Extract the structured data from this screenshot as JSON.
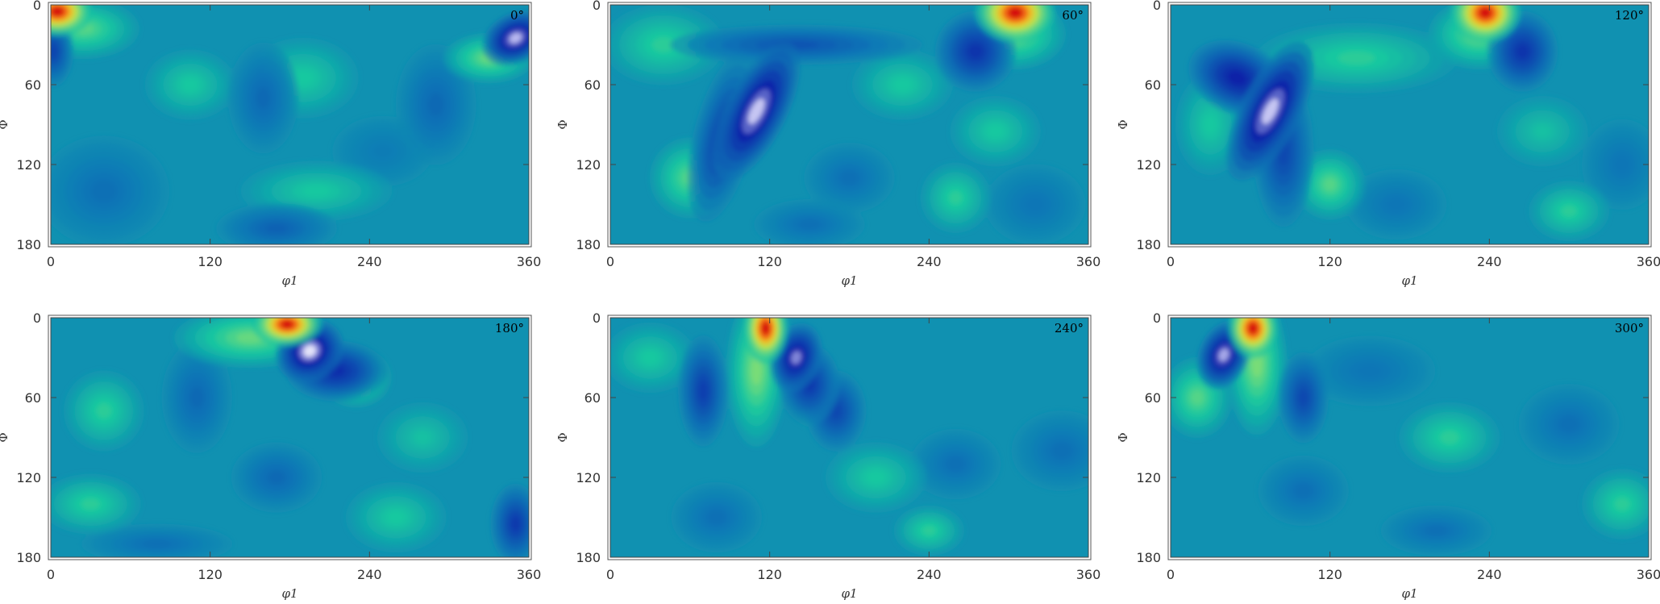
{
  "chart_data": [
    {
      "type": "heatmap",
      "panel_label": "0°",
      "xlabel": "φ1",
      "ylabel": "Φ",
      "xlim": [
        0,
        360
      ],
      "ylim": [
        0,
        180
      ],
      "y_inverted": true,
      "xticks": [
        "0",
        "120",
        "240",
        "360"
      ],
      "yticks": [
        "0",
        "60",
        "120",
        "180"
      ],
      "colormap": "parula-like blue-white-green-yellow-red",
      "background_level": 0.5,
      "features": [
        {
          "phi1": 5,
          "Phi": 5,
          "sx": 14,
          "sy": 10,
          "level": 1.0
        },
        {
          "phi1": 25,
          "Phi": 18,
          "sx": 22,
          "sy": 12,
          "level": 0.7
        },
        {
          "phi1": 350,
          "Phi": 25,
          "sx": 14,
          "sy": 10,
          "level": 0.05,
          "tilt": -0.6
        },
        {
          "phi1": 330,
          "Phi": 40,
          "sx": 18,
          "sy": 10,
          "level": 0.72
        },
        {
          "phi1": 2,
          "Phi": 35,
          "sx": 8,
          "sy": 14,
          "level": 0.25
        },
        {
          "phi1": 190,
          "Phi": 55,
          "sx": 22,
          "sy": 16,
          "level": 0.64
        },
        {
          "phi1": 105,
          "Phi": 60,
          "sx": 18,
          "sy": 14,
          "level": 0.64
        },
        {
          "phi1": 160,
          "Phi": 70,
          "sx": 14,
          "sy": 22,
          "level": 0.36
        },
        {
          "phi1": 290,
          "Phi": 75,
          "sx": 16,
          "sy": 24,
          "level": 0.36
        },
        {
          "phi1": 200,
          "Phi": 140,
          "sx": 30,
          "sy": 12,
          "level": 0.64
        },
        {
          "phi1": 170,
          "Phi": 168,
          "sx": 24,
          "sy": 10,
          "level": 0.34
        },
        {
          "phi1": 40,
          "Phi": 140,
          "sx": 26,
          "sy": 22,
          "level": 0.38
        },
        {
          "phi1": 250,
          "Phi": 110,
          "sx": 20,
          "sy": 14,
          "level": 0.42
        }
      ]
    },
    {
      "type": "heatmap",
      "panel_label": "60°",
      "xlabel": "φ1",
      "ylabel": "Φ",
      "xlim": [
        0,
        360
      ],
      "ylim": [
        0,
        180
      ],
      "y_inverted": true,
      "xticks": [
        "0",
        "120",
        "240",
        "360"
      ],
      "yticks": [
        "0",
        "60",
        "120",
        "180"
      ],
      "colormap": "parula-like blue-white-green-yellow-red",
      "background_level": 0.5,
      "features": [
        {
          "phi1": 305,
          "Phi": 6,
          "sx": 16,
          "sy": 12,
          "level": 1.0
        },
        {
          "phi1": 305,
          "Phi": 22,
          "sx": 20,
          "sy": 14,
          "level": 0.72
        },
        {
          "phi1": 110,
          "Phi": 80,
          "sx": 12,
          "sy": 30,
          "level": 0.04,
          "tilt": 0.6
        },
        {
          "phi1": 85,
          "Phi": 100,
          "sx": 12,
          "sy": 34,
          "level": 0.24,
          "tilt": 0.3
        },
        {
          "phi1": 275,
          "Phi": 35,
          "sx": 16,
          "sy": 16,
          "level": 0.2
        },
        {
          "phi1": 60,
          "Phi": 130,
          "sx": 16,
          "sy": 16,
          "level": 0.7
        },
        {
          "phi1": 40,
          "Phi": 30,
          "sx": 24,
          "sy": 16,
          "level": 0.66
        },
        {
          "phi1": 140,
          "Phi": 30,
          "sx": 50,
          "sy": 8,
          "level": 0.3
        },
        {
          "phi1": 220,
          "Phi": 60,
          "sx": 20,
          "sy": 14,
          "level": 0.64
        },
        {
          "phi1": 290,
          "Phi": 95,
          "sx": 18,
          "sy": 14,
          "level": 0.64
        },
        {
          "phi1": 180,
          "Phi": 130,
          "sx": 18,
          "sy": 14,
          "level": 0.38
        },
        {
          "phi1": 320,
          "Phi": 150,
          "sx": 20,
          "sy": 16,
          "level": 0.4
        },
        {
          "phi1": 260,
          "Phi": 145,
          "sx": 14,
          "sy": 14,
          "level": 0.66
        },
        {
          "phi1": 150,
          "Phi": 165,
          "sx": 22,
          "sy": 10,
          "level": 0.38
        }
      ]
    },
    {
      "type": "heatmap",
      "panel_label": "120°",
      "xlabel": "φ1",
      "ylabel": "Φ",
      "xlim": [
        0,
        360
      ],
      "ylim": [
        0,
        180
      ],
      "y_inverted": true,
      "xticks": [
        "0",
        "120",
        "240",
        "360"
      ],
      "yticks": [
        "0",
        "60",
        "120",
        "180"
      ],
      "colormap": "parula-like blue-white-green-yellow-red",
      "background_level": 0.5,
      "features": [
        {
          "phi1": 237,
          "Phi": 6,
          "sx": 14,
          "sy": 12,
          "level": 1.0
        },
        {
          "phi1": 232,
          "Phi": 22,
          "sx": 20,
          "sy": 14,
          "level": 0.72
        },
        {
          "phi1": 75,
          "Phi": 80,
          "sx": 12,
          "sy": 30,
          "level": 0.04,
          "tilt": 0.6
        },
        {
          "phi1": 50,
          "Phi": 55,
          "sx": 20,
          "sy": 14,
          "level": 0.14,
          "tilt": 0.5
        },
        {
          "phi1": 85,
          "Phi": 110,
          "sx": 12,
          "sy": 30,
          "level": 0.26
        },
        {
          "phi1": 265,
          "Phi": 35,
          "sx": 14,
          "sy": 16,
          "level": 0.2
        },
        {
          "phi1": 120,
          "Phi": 135,
          "sx": 14,
          "sy": 14,
          "level": 0.7
        },
        {
          "phi1": 140,
          "Phi": 40,
          "sx": 40,
          "sy": 14,
          "level": 0.66
        },
        {
          "phi1": 30,
          "Phi": 90,
          "sx": 14,
          "sy": 20,
          "level": 0.64
        },
        {
          "phi1": 280,
          "Phi": 95,
          "sx": 18,
          "sy": 14,
          "level": 0.62
        },
        {
          "phi1": 340,
          "Phi": 120,
          "sx": 16,
          "sy": 18,
          "level": 0.4
        },
        {
          "phi1": 170,
          "Phi": 150,
          "sx": 20,
          "sy": 14,
          "level": 0.4
        },
        {
          "phi1": 300,
          "Phi": 155,
          "sx": 16,
          "sy": 12,
          "level": 0.66
        }
      ]
    },
    {
      "type": "heatmap",
      "panel_label": "180°",
      "xlabel": "φ1",
      "ylabel": "Φ",
      "xlim": [
        0,
        360
      ],
      "ylim": [
        0,
        180
      ],
      "y_inverted": true,
      "xticks": [
        "0",
        "120",
        "240",
        "360"
      ],
      "yticks": [
        "0",
        "60",
        "120",
        "180"
      ],
      "colormap": "parula-like blue-white-green-yellow-red",
      "background_level": 0.5,
      "features": [
        {
          "phi1": 178,
          "Phi": 5,
          "sx": 14,
          "sy": 9,
          "level": 1.0
        },
        {
          "phi1": 150,
          "Phi": 15,
          "sx": 30,
          "sy": 12,
          "level": 0.72
        },
        {
          "phi1": 195,
          "Phi": 25,
          "sx": 14,
          "sy": 12,
          "level": 0.02,
          "tilt": -0.7
        },
        {
          "phi1": 215,
          "Phi": 40,
          "sx": 20,
          "sy": 12,
          "level": 0.18
        },
        {
          "phi1": 230,
          "Phi": 45,
          "sx": 14,
          "sy": 12,
          "level": 0.7
        },
        {
          "phi1": 40,
          "Phi": 70,
          "sx": 16,
          "sy": 16,
          "level": 0.66
        },
        {
          "phi1": 110,
          "Phi": 60,
          "sx": 14,
          "sy": 22,
          "level": 0.36
        },
        {
          "phi1": 280,
          "Phi": 90,
          "sx": 18,
          "sy": 14,
          "level": 0.62
        },
        {
          "phi1": 30,
          "Phi": 140,
          "sx": 20,
          "sy": 12,
          "level": 0.66
        },
        {
          "phi1": 170,
          "Phi": 120,
          "sx": 18,
          "sy": 14,
          "level": 0.36
        },
        {
          "phi1": 350,
          "Phi": 155,
          "sx": 10,
          "sy": 16,
          "level": 0.22
        },
        {
          "phi1": 260,
          "Phi": 150,
          "sx": 20,
          "sy": 14,
          "level": 0.64
        },
        {
          "phi1": 80,
          "Phi": 170,
          "sx": 30,
          "sy": 8,
          "level": 0.38
        }
      ]
    },
    {
      "type": "heatmap",
      "panel_label": "240°",
      "xlabel": "φ1",
      "ylabel": "Φ",
      "xlim": [
        0,
        360
      ],
      "ylim": [
        0,
        180
      ],
      "y_inverted": true,
      "xticks": [
        "0",
        "120",
        "240",
        "360"
      ],
      "yticks": [
        "0",
        "60",
        "120",
        "180"
      ],
      "colormap": "parula-like blue-white-green-yellow-red",
      "background_level": 0.5,
      "features": [
        {
          "phi1": 117,
          "Phi": 8,
          "sx": 9,
          "sy": 14,
          "level": 1.0
        },
        {
          "phi1": 110,
          "Phi": 40,
          "sx": 12,
          "sy": 30,
          "level": 0.74
        },
        {
          "phi1": 140,
          "Phi": 30,
          "sx": 10,
          "sy": 14,
          "level": 0.08,
          "tilt": 0.4
        },
        {
          "phi1": 150,
          "Phi": 50,
          "sx": 12,
          "sy": 16,
          "level": 0.22
        },
        {
          "phi1": 70,
          "Phi": 55,
          "sx": 10,
          "sy": 22,
          "level": 0.24
        },
        {
          "phi1": 170,
          "Phi": 70,
          "sx": 12,
          "sy": 16,
          "level": 0.26
        },
        {
          "phi1": 155,
          "Phi": 60,
          "sx": 12,
          "sy": 12,
          "level": 0.7
        },
        {
          "phi1": 30,
          "Phi": 30,
          "sx": 18,
          "sy": 14,
          "level": 0.64
        },
        {
          "phi1": 200,
          "Phi": 120,
          "sx": 20,
          "sy": 14,
          "level": 0.64
        },
        {
          "phi1": 260,
          "Phi": 110,
          "sx": 18,
          "sy": 14,
          "level": 0.38
        },
        {
          "phi1": 340,
          "Phi": 100,
          "sx": 20,
          "sy": 16,
          "level": 0.38
        },
        {
          "phi1": 80,
          "Phi": 150,
          "sx": 18,
          "sy": 14,
          "level": 0.38
        },
        {
          "phi1": 240,
          "Phi": 160,
          "sx": 14,
          "sy": 10,
          "level": 0.66
        }
      ]
    },
    {
      "type": "heatmap",
      "panel_label": "300°",
      "xlabel": "φ1",
      "ylabel": "Φ",
      "xlim": [
        0,
        360
      ],
      "ylim": [
        0,
        180
      ],
      "y_inverted": true,
      "xticks": [
        "0",
        "120",
        "240",
        "360"
      ],
      "yticks": [
        "0",
        "60",
        "120",
        "180"
      ],
      "colormap": "parula-like blue-white-green-yellow-red",
      "background_level": 0.5,
      "features": [
        {
          "phi1": 62,
          "Phi": 8,
          "sx": 10,
          "sy": 12,
          "level": 1.0
        },
        {
          "phi1": 65,
          "Phi": 35,
          "sx": 12,
          "sy": 28,
          "level": 0.74
        },
        {
          "phi1": 40,
          "Phi": 28,
          "sx": 10,
          "sy": 14,
          "level": 0.06,
          "tilt": 0.5
        },
        {
          "phi1": 20,
          "Phi": 60,
          "sx": 14,
          "sy": 16,
          "level": 0.7
        },
        {
          "phi1": 100,
          "Phi": 60,
          "sx": 10,
          "sy": 18,
          "level": 0.26
        },
        {
          "phi1": 150,
          "Phi": 40,
          "sx": 26,
          "sy": 14,
          "level": 0.4
        },
        {
          "phi1": 210,
          "Phi": 90,
          "sx": 20,
          "sy": 14,
          "level": 0.66
        },
        {
          "phi1": 300,
          "Phi": 80,
          "sx": 20,
          "sy": 16,
          "level": 0.38
        },
        {
          "phi1": 100,
          "Phi": 130,
          "sx": 18,
          "sy": 14,
          "level": 0.38
        },
        {
          "phi1": 340,
          "Phi": 140,
          "sx": 16,
          "sy": 14,
          "level": 0.66
        },
        {
          "phi1": 200,
          "Phi": 160,
          "sx": 22,
          "sy": 10,
          "level": 0.38
        }
      ]
    }
  ]
}
